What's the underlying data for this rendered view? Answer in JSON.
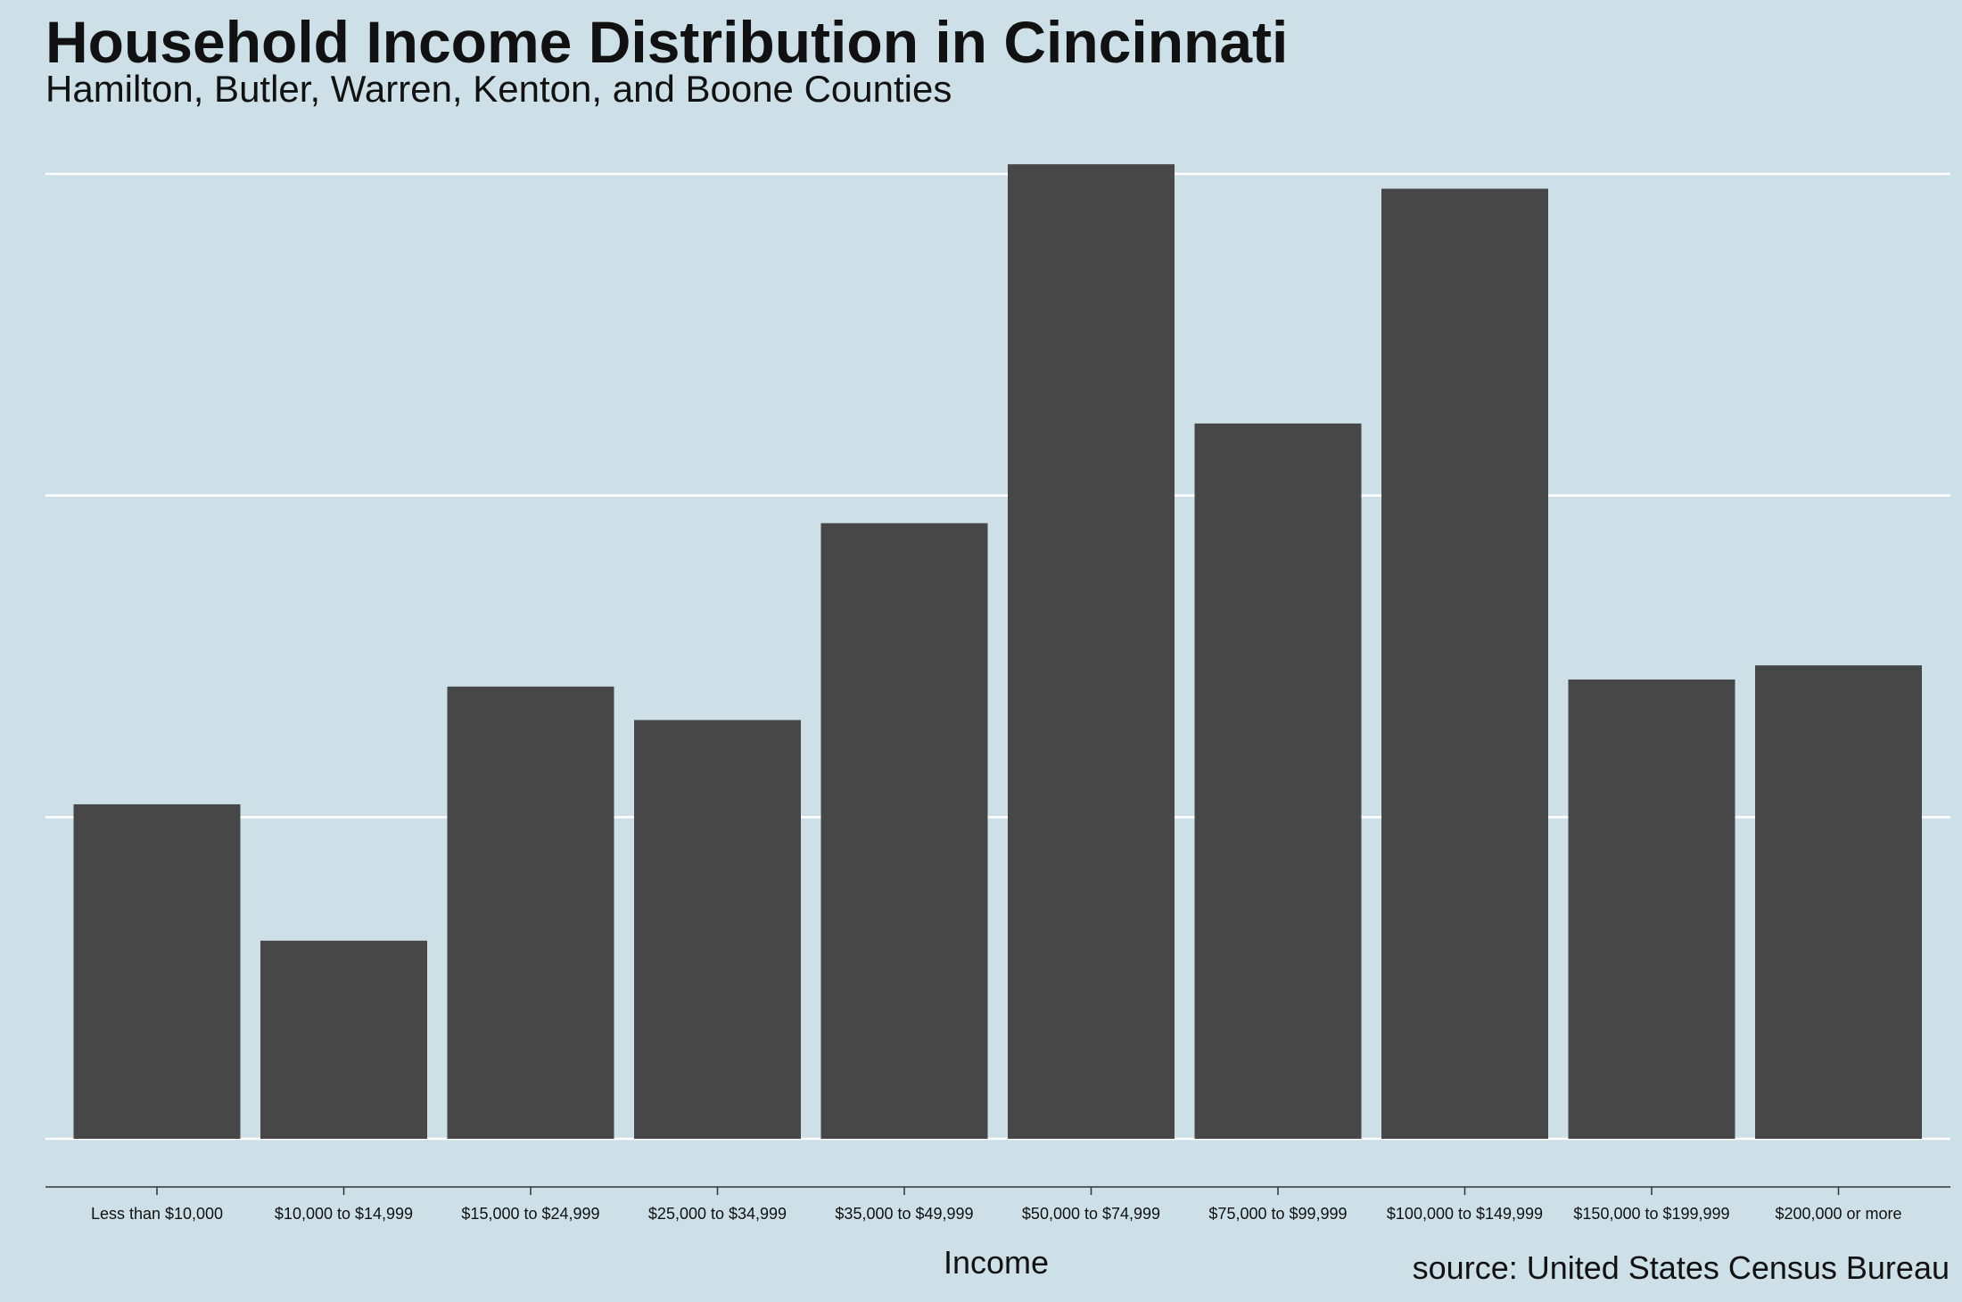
{
  "colors": {
    "background": "#cde0e7",
    "bar": "#474747",
    "gridline": "#ffffff",
    "axis": "#333333"
  },
  "chart_data": {
    "type": "bar",
    "title": "Household Income Distribution in Cincinnati",
    "subtitle": "Hamilton, Butler, Warren, Kenton, and Boone Counties",
    "xlabel": "Income",
    "ylabel": "",
    "source": "source: United States Census Bureau",
    "categories": [
      "Less than $10,000",
      "$10,000 to $14,999",
      "$15,000 to $24,999",
      "$25,000 to $34,999",
      "$35,000 to $49,999",
      "$50,000 to $74,999",
      "$75,000 to $99,999",
      "$100,000 to $149,999",
      "$150,000 to $199,999",
      "$200,000 or more"
    ],
    "values": [
      52000,
      30800,
      70300,
      65100,
      95700,
      151500,
      111200,
      147700,
      71400,
      73600
    ],
    "ylim": [
      0,
      150000
    ],
    "y_gridlines": [
      0,
      50000,
      100000,
      150000
    ],
    "y_tick_labels_visible": false,
    "grid": "horizontal major only",
    "legend": "none"
  }
}
